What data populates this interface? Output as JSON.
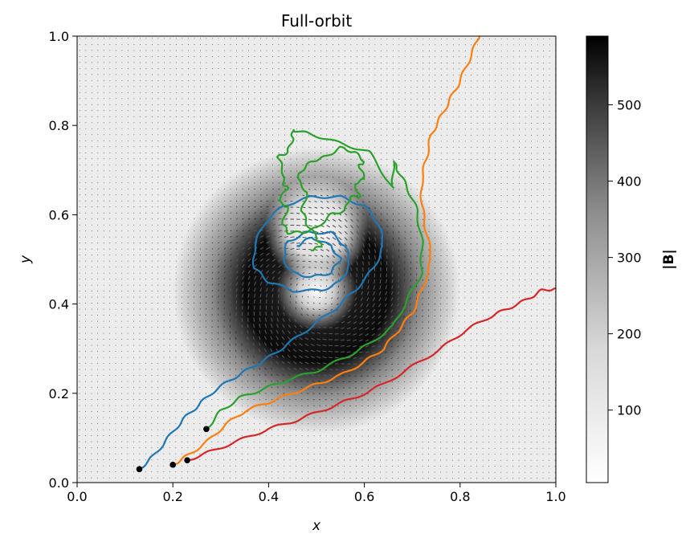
{
  "chart_data": {
    "type": "line",
    "title": "Full-orbit",
    "xlabel": "x",
    "ylabel": "y",
    "xlim": [
      0.0,
      1.0
    ],
    "ylim": [
      0.0,
      1.0
    ],
    "xticks": [
      "0.0",
      "0.2",
      "0.4",
      "0.6",
      "0.8",
      "1.0"
    ],
    "yticks": [
      "0.0",
      "0.2",
      "0.4",
      "0.6",
      "0.8",
      "1.0"
    ],
    "background": "quiver field of B over heatmap of |B| (greyscale, white = low, black = high)",
    "field": {
      "center": [
        0.5,
        0.43
      ],
      "hole_center": [
        0.5,
        0.57
      ],
      "core_radius": 0.11,
      "outer_radius": 0.3
    },
    "colorbar": {
      "label": "|B|",
      "range": [
        5,
        590
      ],
      "ticks": [
        "100",
        "200",
        "300",
        "400",
        "500"
      ],
      "tick_values": [
        100,
        200,
        300,
        400,
        500
      ],
      "cmap": "Greys"
    },
    "start_marker_color": "#000000",
    "series": [
      {
        "color": "#1f77b4",
        "start": [
          0.13,
          0.03
        ],
        "points": [
          [
            0.13,
            0.03
          ],
          [
            0.16,
            0.06
          ],
          [
            0.19,
            0.1
          ],
          [
            0.22,
            0.14
          ],
          [
            0.25,
            0.17
          ],
          [
            0.28,
            0.2
          ],
          [
            0.32,
            0.23
          ],
          [
            0.36,
            0.255
          ],
          [
            0.4,
            0.28
          ],
          [
            0.44,
            0.31
          ],
          [
            0.49,
            0.35
          ],
          [
            0.54,
            0.39
          ],
          [
            0.58,
            0.43
          ],
          [
            0.62,
            0.48
          ],
          [
            0.64,
            0.53
          ],
          [
            0.63,
            0.58
          ],
          [
            0.6,
            0.62
          ],
          [
            0.55,
            0.64
          ],
          [
            0.49,
            0.64
          ],
          [
            0.43,
            0.62
          ],
          [
            0.39,
            0.58
          ],
          [
            0.37,
            0.53
          ],
          [
            0.37,
            0.48
          ],
          [
            0.4,
            0.45
          ],
          [
            0.45,
            0.43
          ],
          [
            0.51,
            0.43
          ],
          [
            0.55,
            0.45
          ],
          [
            0.57,
            0.49
          ],
          [
            0.56,
            0.53
          ],
          [
            0.53,
            0.56
          ],
          [
            0.48,
            0.56
          ],
          [
            0.44,
            0.54
          ],
          [
            0.43,
            0.5
          ],
          [
            0.45,
            0.47
          ],
          [
            0.49,
            0.46
          ],
          [
            0.53,
            0.47
          ],
          [
            0.55,
            0.5
          ],
          [
            0.53,
            0.53
          ],
          [
            0.49,
            0.55
          ],
          [
            0.46,
            0.53
          ]
        ]
      },
      {
        "color": "#ff7f0e",
        "start": [
          0.2,
          0.04
        ],
        "points": [
          [
            0.2,
            0.04
          ],
          [
            0.23,
            0.06
          ],
          [
            0.27,
            0.09
          ],
          [
            0.31,
            0.13
          ],
          [
            0.35,
            0.16
          ],
          [
            0.4,
            0.18
          ],
          [
            0.45,
            0.2
          ],
          [
            0.5,
            0.22
          ],
          [
            0.55,
            0.24
          ],
          [
            0.6,
            0.27
          ],
          [
            0.64,
            0.3
          ],
          [
            0.67,
            0.34
          ],
          [
            0.7,
            0.38
          ],
          [
            0.72,
            0.43
          ],
          [
            0.74,
            0.5
          ],
          [
            0.73,
            0.56
          ],
          [
            0.72,
            0.62
          ],
          [
            0.72,
            0.68
          ],
          [
            0.73,
            0.73
          ],
          [
            0.74,
            0.78
          ],
          [
            0.76,
            0.82
          ],
          [
            0.78,
            0.86
          ],
          [
            0.8,
            0.9
          ],
          [
            0.82,
            0.95
          ],
          [
            0.84,
            1.0
          ]
        ]
      },
      {
        "color": "#2ca02c",
        "start": [
          0.27,
          0.12
        ],
        "points": [
          [
            0.27,
            0.12
          ],
          [
            0.3,
            0.16
          ],
          [
            0.34,
            0.19
          ],
          [
            0.39,
            0.21
          ],
          [
            0.44,
            0.23
          ],
          [
            0.5,
            0.25
          ],
          [
            0.56,
            0.28
          ],
          [
            0.61,
            0.31
          ],
          [
            0.66,
            0.35
          ],
          [
            0.69,
            0.41
          ],
          [
            0.72,
            0.47
          ],
          [
            0.72,
            0.54
          ],
          [
            0.71,
            0.61
          ],
          [
            0.69,
            0.66
          ],
          [
            0.67,
            0.7
          ],
          [
            0.66,
            0.72
          ],
          [
            0.66,
            0.66
          ],
          [
            0.61,
            0.74
          ],
          [
            0.55,
            0.76
          ],
          [
            0.49,
            0.78
          ],
          [
            0.45,
            0.79
          ],
          [
            0.45,
            0.77
          ],
          [
            0.44,
            0.74
          ],
          [
            0.42,
            0.73
          ],
          [
            0.43,
            0.7
          ],
          [
            0.43,
            0.67
          ],
          [
            0.44,
            0.66
          ],
          [
            0.42,
            0.63
          ],
          [
            0.44,
            0.62
          ],
          [
            0.43,
            0.58
          ],
          [
            0.44,
            0.56
          ],
          [
            0.47,
            0.56
          ],
          [
            0.5,
            0.57
          ],
          [
            0.53,
            0.6
          ],
          [
            0.56,
            0.61
          ],
          [
            0.57,
            0.64
          ],
          [
            0.59,
            0.64
          ],
          [
            0.58,
            0.67
          ],
          [
            0.6,
            0.68
          ],
          [
            0.59,
            0.71
          ],
          [
            0.6,
            0.72
          ],
          [
            0.58,
            0.74
          ],
          [
            0.55,
            0.75
          ],
          [
            0.52,
            0.73
          ],
          [
            0.49,
            0.72
          ],
          [
            0.47,
            0.7
          ],
          [
            0.46,
            0.68
          ],
          [
            0.48,
            0.65
          ],
          [
            0.47,
            0.61
          ],
          [
            0.48,
            0.58
          ],
          [
            0.5,
            0.55
          ],
          [
            0.51,
            0.53
          ],
          [
            0.49,
            0.52
          ]
        ]
      },
      {
        "color": "#d62728",
        "start": [
          0.23,
          0.05
        ],
        "points": [
          [
            0.23,
            0.05
          ],
          [
            0.28,
            0.07
          ],
          [
            0.34,
            0.095
          ],
          [
            0.4,
            0.12
          ],
          [
            0.46,
            0.14
          ],
          [
            0.52,
            0.165
          ],
          [
            0.58,
            0.19
          ],
          [
            0.64,
            0.22
          ],
          [
            0.7,
            0.26
          ],
          [
            0.76,
            0.3
          ],
          [
            0.81,
            0.34
          ],
          [
            0.86,
            0.37
          ],
          [
            0.9,
            0.39
          ],
          [
            0.94,
            0.41
          ],
          [
            0.97,
            0.43
          ],
          [
            1.0,
            0.435
          ]
        ]
      }
    ]
  }
}
